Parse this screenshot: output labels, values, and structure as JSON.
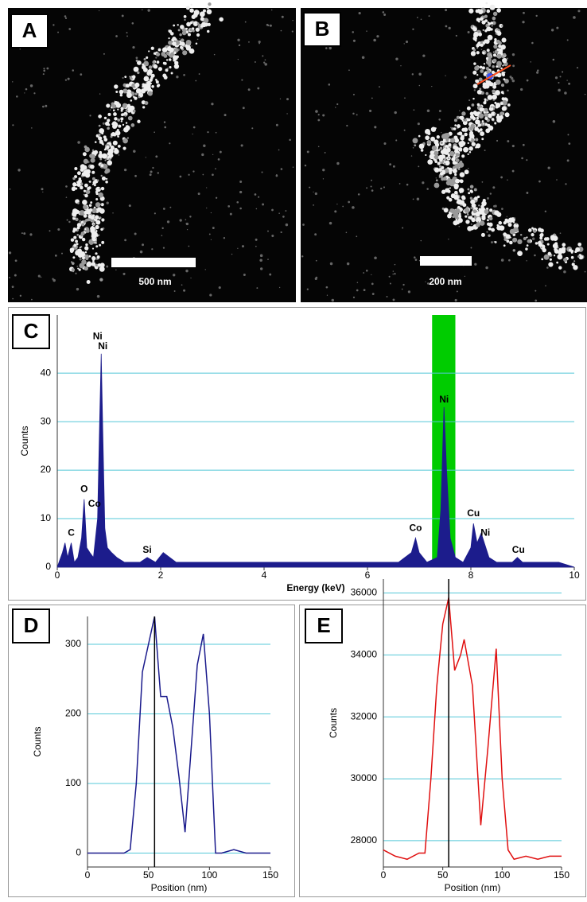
{
  "images": [
    {
      "panel": "A",
      "scale_bar": "500 nm"
    },
    {
      "panel": "B",
      "scale_bar": "200 nm"
    }
  ],
  "chart_data": [
    {
      "type": "area",
      "panel": "C",
      "x_label": "Energy (keV)",
      "y_label": "Counts",
      "x": [
        0,
        0.1,
        0.15,
        0.2,
        0.27,
        0.33,
        0.4,
        0.47,
        0.52,
        0.57,
        0.63,
        0.7,
        0.78,
        0.82,
        0.85,
        0.88,
        0.92,
        0.97,
        1.05,
        1.15,
        1.3,
        1.45,
        1.6,
        1.74,
        1.9,
        2.05,
        2.3,
        2.6,
        3.0,
        3.4,
        3.8,
        4.2,
        4.6,
        5.0,
        5.4,
        5.8,
        6.2,
        6.6,
        6.85,
        6.93,
        7.0,
        7.15,
        7.35,
        7.42,
        7.48,
        7.53,
        7.6,
        7.7,
        7.85,
        8.0,
        8.05,
        8.12,
        8.2,
        8.26,
        8.35,
        8.5,
        8.8,
        8.9,
        9.0,
        9.3,
        9.7,
        10
      ],
      "series": [
        {
          "color": "#1c1c8c",
          "values": [
            0,
            3,
            5,
            2,
            5,
            1,
            2,
            6,
            14,
            4,
            3,
            2,
            10,
            30,
            44,
            28,
            8,
            4,
            3,
            2,
            1,
            1,
            1,
            2,
            1,
            3,
            1,
            1,
            1,
            1,
            1,
            1,
            1,
            1,
            1,
            1,
            1,
            1,
            3,
            6,
            3,
            1,
            2,
            12,
            33,
            20,
            6,
            2,
            1,
            4,
            9,
            5,
            7,
            5,
            2,
            1,
            1,
            2,
            1,
            1,
            1,
            0
          ]
        }
      ],
      "highlight": [
        7.25,
        7.7
      ],
      "highlight_color": "#00cc00",
      "annotations": [
        {
          "text": "C",
          "x": 0.27,
          "y": 7
        },
        {
          "text": "O",
          "x": 0.52,
          "y": 16
        },
        {
          "text": "Co",
          "x": 0.72,
          "y": 13
        },
        {
          "text": "Ni",
          "x": 0.78,
          "y": 47.5
        },
        {
          "text": "Ni",
          "x": 0.88,
          "y": 45.5
        },
        {
          "text": "Si",
          "x": 1.74,
          "y": 3.5
        },
        {
          "text": "Co",
          "x": 6.93,
          "y": 8
        },
        {
          "text": "Ni",
          "x": 7.48,
          "y": 34.5
        },
        {
          "text": "Cu",
          "x": 8.05,
          "y": 11
        },
        {
          "text": "Ni",
          "x": 8.28,
          "y": 7
        },
        {
          "text": "Cu",
          "x": 8.92,
          "y": 3.5
        }
      ],
      "xlim": [
        0,
        10
      ],
      "xticks": [
        0,
        2,
        4,
        6,
        8,
        10
      ],
      "ylim": [
        0,
        52
      ],
      "yticks": [
        0,
        10,
        20,
        30,
        40
      ],
      "grid": true,
      "grid_color": "#55c8d8"
    },
    {
      "type": "line",
      "panel": "D",
      "x_label": "Position (nm)",
      "y_label": "Counts",
      "x": [
        0,
        10,
        20,
        30,
        35,
        40,
        45,
        50,
        55,
        60,
        65,
        70,
        75,
        80,
        85,
        90,
        95,
        100,
        105,
        110,
        120,
        130,
        140,
        150
      ],
      "series": [
        {
          "color": "#1a1a8c",
          "values": [
            0,
            0,
            0,
            0,
            5,
            100,
            260,
            300,
            340,
            225,
            225,
            180,
            110,
            30,
            150,
            270,
            315,
            200,
            0,
            0,
            5,
            0,
            0,
            0
          ]
        }
      ],
      "marker": 55,
      "xlim": [
        0,
        150
      ],
      "xticks": [
        0,
        50,
        100,
        150
      ],
      "ylim": [
        -20,
        340
      ],
      "yticks": [
        0,
        100,
        200,
        300
      ],
      "grid": true,
      "grid_color": "#55c8d8"
    },
    {
      "type": "line",
      "panel": "E",
      "x_label": "Position (nm)",
      "y_label": "Counts",
      "x": [
        0,
        10,
        20,
        30,
        35,
        40,
        45,
        50,
        55,
        60,
        65,
        68,
        75,
        82,
        88,
        95,
        100,
        105,
        110,
        120,
        130,
        140,
        150
      ],
      "series": [
        {
          "color": "#e01010",
          "values": [
            27700,
            27500,
            27400,
            27600,
            27600,
            30000,
            33000,
            35000,
            35850,
            33500,
            34000,
            34500,
            33000,
            28500,
            31000,
            34200,
            30000,
            27700,
            27400,
            27500,
            27400,
            27500,
            27500
          ]
        }
      ],
      "marker": 55,
      "xlim": [
        0,
        150
      ],
      "xticks": [
        0,
        50,
        100,
        150
      ],
      "ylim": [
        27150,
        36450
      ],
      "yticks": [
        28000,
        30000,
        32000,
        34000,
        36000
      ],
      "grid": true,
      "grid_color": "#55c8d8"
    }
  ]
}
